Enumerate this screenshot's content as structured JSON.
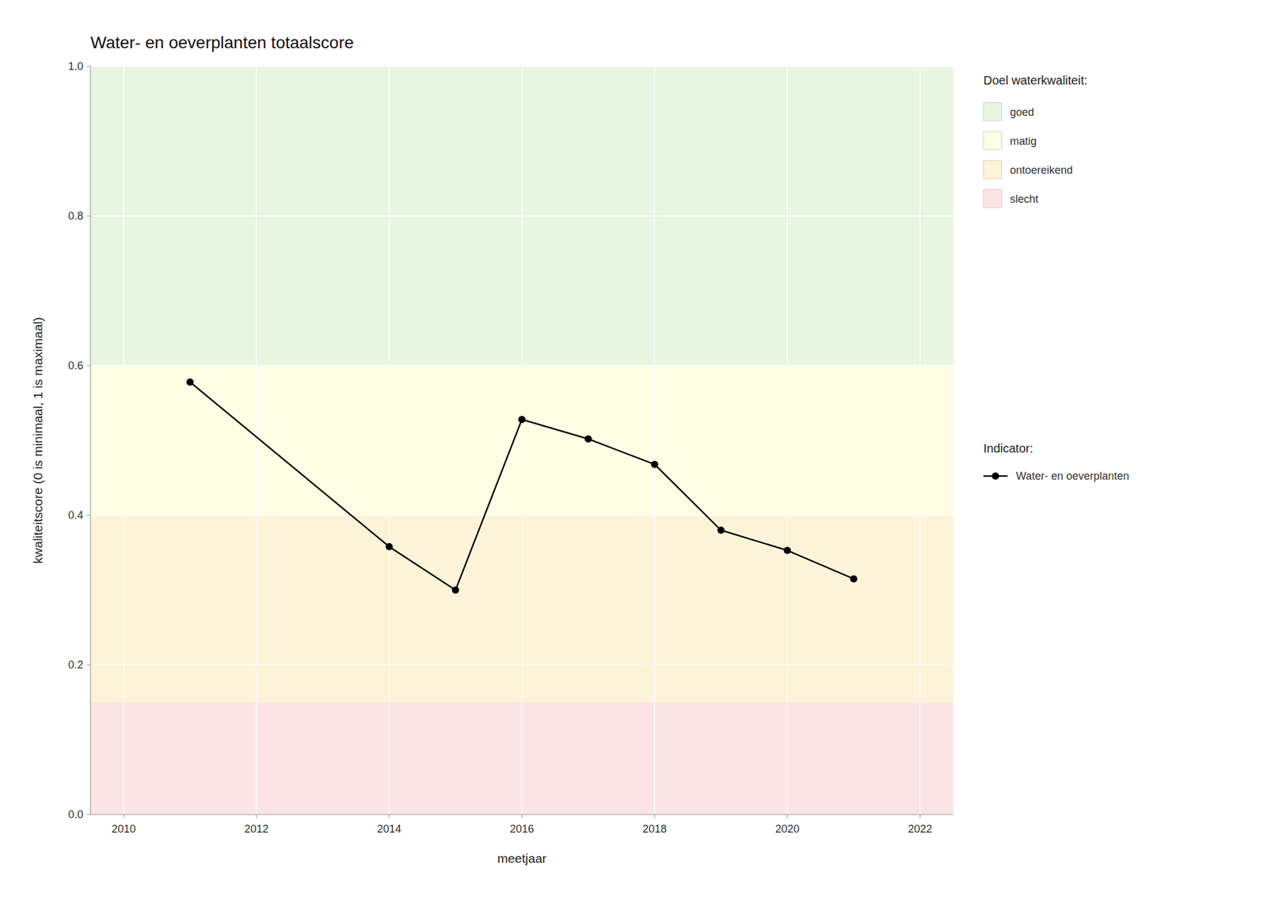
{
  "chart_data": {
    "type": "line",
    "title": "Water- en oeverplanten totaalscore",
    "xlabel": "meetjaar",
    "ylabel": "kwaliteitscore (0 is minimaal, 1 is maximaal)",
    "x": [
      2011,
      2014,
      2015,
      2016,
      2017,
      2018,
      2019,
      2020,
      2021
    ],
    "series": [
      {
        "name": "Water- en oeverplanten",
        "color": "#000000",
        "marker": "circle",
        "values": [
          0.578,
          0.358,
          0.3,
          0.528,
          0.502,
          0.468,
          0.38,
          0.353,
          0.315
        ]
      }
    ],
    "xlim": [
      2009.5,
      2022.5
    ],
    "ylim": [
      0.0,
      1.0
    ],
    "xticks": [
      2010,
      2012,
      2014,
      2016,
      2018,
      2020,
      2022
    ],
    "yticks": [
      {
        "value": 0.0,
        "label": "0.0"
      },
      0.2,
      0.4,
      0.6,
      0.8,
      {
        "value": 1.0,
        "label": "1.0"
      }
    ],
    "grid": true,
    "legend": "right",
    "legend_title": "Indicator:",
    "zones_title": "Doel waterkwaliteit:",
    "zones": [
      {
        "label": "goed",
        "ymin": 0.6,
        "ymax": 1.0,
        "color": "#e8f5e1"
      },
      {
        "label": "matig",
        "ymin": 0.4,
        "ymax": 0.6,
        "color": "#fdfee3"
      },
      {
        "label": "ontoereikend",
        "ymin": 0.15,
        "ymax": 0.4,
        "color": "#fdf3d8"
      },
      {
        "label": "slecht",
        "ymin": 0.0,
        "ymax": 0.15,
        "color": "#fce4e6"
      }
    ]
  }
}
